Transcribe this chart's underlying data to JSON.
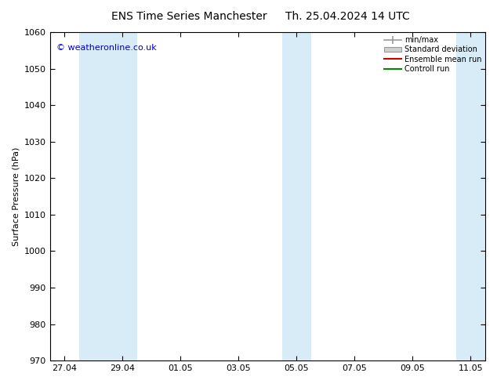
{
  "title_left": "ENS Time Series Manchester",
  "title_right": "Th. 25.04.2024 14 UTC",
  "ylabel": "Surface Pressure (hPa)",
  "ylim": [
    970,
    1060
  ],
  "yticks": [
    970,
    980,
    990,
    1000,
    1010,
    1020,
    1030,
    1040,
    1050,
    1060
  ],
  "xlabel_dates": [
    "27.04",
    "29.04",
    "01.05",
    "03.05",
    "05.05",
    "07.05",
    "09.05",
    "11.05"
  ],
  "x_positions": [
    0,
    2,
    4,
    6,
    8,
    10,
    12,
    14
  ],
  "x_min": -0.5,
  "x_max": 14.5,
  "shaded_bands": [
    {
      "x_start": 0.5,
      "x_end": 2.5
    },
    {
      "x_start": 7.5,
      "x_end": 8.5
    },
    {
      "x_start": 13.5,
      "x_end": 14.5
    }
  ],
  "shade_color": "#d8ecf8",
  "background_color": "#ffffff",
  "watermark_text": "© weatheronline.co.uk",
  "watermark_color": "#0000cc",
  "legend_items": [
    {
      "label": "min/max",
      "color": "#aaaaaa",
      "type": "errorbar"
    },
    {
      "label": "Standard deviation",
      "color": "#cccccc",
      "type": "box"
    },
    {
      "label": "Ensemble mean run",
      "color": "#ff0000",
      "type": "line"
    },
    {
      "label": "Controll run",
      "color": "#008800",
      "type": "line"
    }
  ],
  "title_fontsize": 10,
  "axis_fontsize": 8,
  "tick_fontsize": 8,
  "legend_fontsize": 7
}
